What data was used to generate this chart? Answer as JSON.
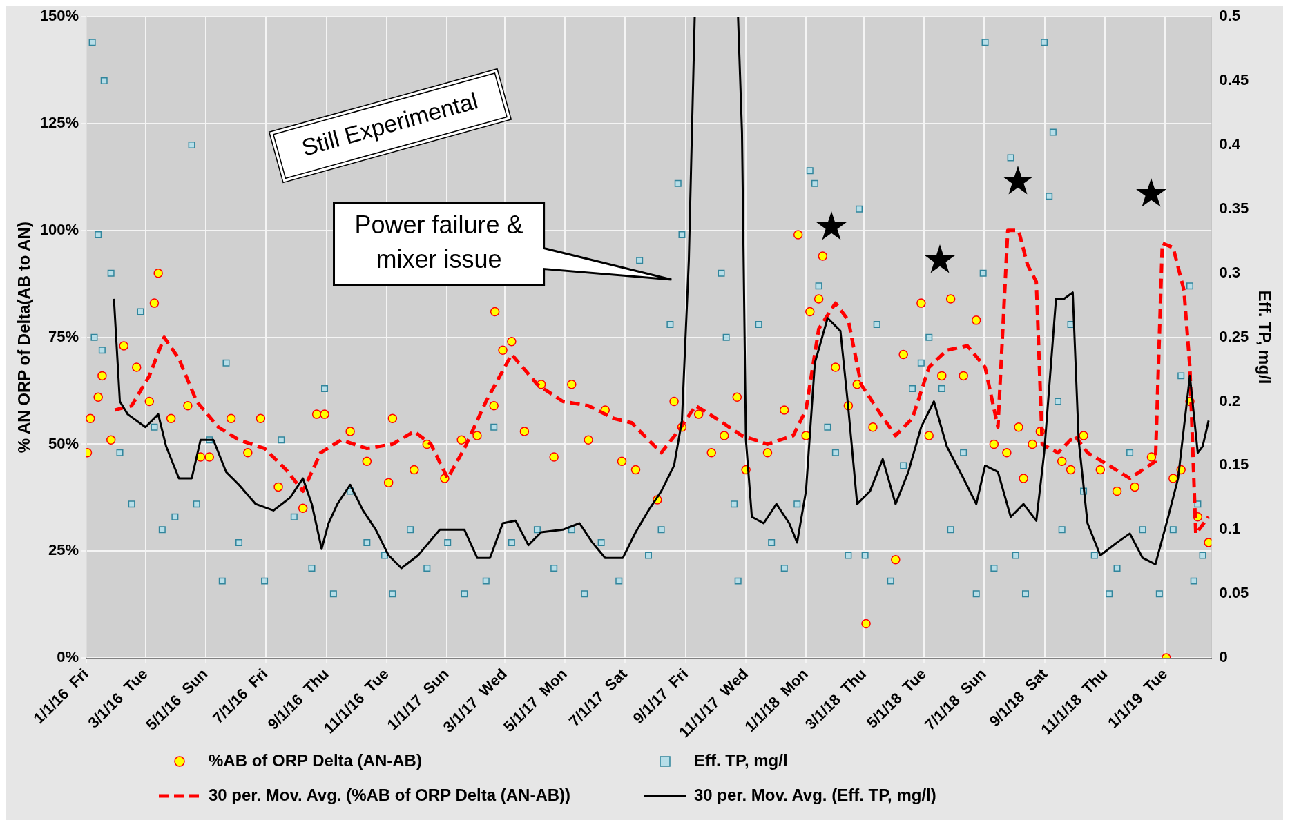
{
  "chart_data": {
    "type": "scatter",
    "ylabel": "% AN ORP of Delta(AB to AN)",
    "y2label": "Eff. TP, mg/l",
    "xlim": [
      "2016-01-01",
      "2019-02-17"
    ],
    "xticks": [
      {
        "value": "2016-01-01",
        "label": "1/1/16  Fri"
      },
      {
        "value": "2016-03-01",
        "label": "3/1/16  Tue"
      },
      {
        "value": "2016-05-01",
        "label": "5/1/16  Sun"
      },
      {
        "value": "2016-07-01",
        "label": "7/1/16  Fri"
      },
      {
        "value": "2016-09-01",
        "label": "9/1/16  Thu"
      },
      {
        "value": "2016-11-01",
        "label": "11/1/16  Tue"
      },
      {
        "value": "2017-01-01",
        "label": "1/1/17  Sun"
      },
      {
        "value": "2017-03-01",
        "label": "3/1/17  Wed"
      },
      {
        "value": "2017-05-01",
        "label": "5/1/17  Mon"
      },
      {
        "value": "2017-07-01",
        "label": "7/1/17  Sat"
      },
      {
        "value": "2017-09-01",
        "label": "9/1/17  Fri"
      },
      {
        "value": "2017-11-01",
        "label": "11/1/17  Wed"
      },
      {
        "value": "2018-01-01",
        "label": "1/1/18  Mon"
      },
      {
        "value": "2018-03-01",
        "label": "3/1/18  Thu"
      },
      {
        "value": "2018-05-01",
        "label": "5/1/18  Tue"
      },
      {
        "value": "2018-07-01",
        "label": "7/1/18  Sun"
      },
      {
        "value": "2018-09-01",
        "label": "9/1/18  Sat"
      },
      {
        "value": "2018-11-01",
        "label": "11/1/18  Thu"
      },
      {
        "value": "2019-01-01",
        "label": "1/1/19  Tue"
      }
    ],
    "ylim": [
      0,
      150
    ],
    "yticks": [
      {
        "value": 0,
        "label": "0%"
      },
      {
        "value": 25,
        "label": "25%"
      },
      {
        "value": 50,
        "label": "50%"
      },
      {
        "value": 75,
        "label": "75%"
      },
      {
        "value": 100,
        "label": "100%"
      },
      {
        "value": 125,
        "label": "125%"
      },
      {
        "value": 150,
        "label": "150%"
      }
    ],
    "y2lim": [
      0,
      0.5
    ],
    "y2ticks": [
      0,
      0.05,
      0.1,
      0.15,
      0.2,
      0.25,
      0.3,
      0.35,
      0.4,
      0.45,
      0.5
    ],
    "grid": true,
    "legend": "bottom",
    "annotations": [
      "Still Experimental",
      "Power failure & mixer issue"
    ],
    "series": [
      {
        "name": "%AB of ORP Delta (AN-AB)",
        "type": "scatter",
        "marker": "circle",
        "color": "#ffff00",
        "x": [
          "2016-01-02",
          "2016-01-05",
          "2016-01-13",
          "2016-01-17",
          "2016-01-26",
          "2016-02-08",
          "2016-02-21",
          "2016-03-05",
          "2016-03-14",
          "2016-03-10",
          "2016-03-27",
          "2016-04-13",
          "2016-04-26",
          "2016-05-05",
          "2016-05-27",
          "2016-06-13",
          "2016-06-26",
          "2016-07-14",
          "2016-08-08",
          "2016-08-22",
          "2016-08-30",
          "2016-09-25",
          "2016-10-12",
          "2016-11-03",
          "2016-11-07",
          "2016-11-29",
          "2016-12-12",
          "2016-12-30",
          "2017-01-16",
          "2017-02-01",
          "2017-02-18",
          "2017-02-27",
          "2017-02-19",
          "2017-03-08",
          "2017-03-21",
          "2017-04-07",
          "2017-04-20",
          "2017-05-08",
          "2017-05-25",
          "2017-06-11",
          "2017-06-28",
          "2017-07-12",
          "2017-08-03",
          "2017-08-20",
          "2017-08-28",
          "2017-09-14",
          "2017-09-27",
          "2017-10-10",
          "2017-10-23",
          "2017-11-01",
          "2017-11-23",
          "2017-12-10",
          "2017-12-24",
          "2018-01-01",
          "2018-01-05",
          "2018-01-14",
          "2018-01-18",
          "2018-01-31",
          "2018-02-13",
          "2018-02-22",
          "2018-03-03",
          "2018-03-10",
          "2018-04-02",
          "2018-04-10",
          "2018-04-28",
          "2018-05-06",
          "2018-05-19",
          "2018-05-28",
          "2018-06-10",
          "2018-06-23",
          "2018-07-11",
          "2018-07-24",
          "2018-08-05",
          "2018-08-10",
          "2018-08-19",
          "2018-08-27",
          "2018-09-18",
          "2018-09-27",
          "2018-10-10",
          "2018-10-27",
          "2018-11-13",
          "2018-12-01",
          "2018-12-18",
          "2019-01-02",
          "2019-01-09",
          "2019-01-17",
          "2019-01-26",
          "2019-02-03",
          "2019-02-14"
        ],
        "values": [
          48,
          56,
          61,
          66,
          51,
          73,
          68,
          60,
          90,
          83,
          56,
          59,
          47,
          47,
          56,
          48,
          56,
          40,
          35,
          57,
          57,
          53,
          46,
          41,
          56,
          44,
          50,
          42,
          51,
          52,
          59,
          72,
          81,
          74,
          53,
          64,
          47,
          64,
          51,
          58,
          46,
          44,
          37,
          60,
          54,
          57,
          48,
          52,
          61,
          44,
          48,
          58,
          99,
          52,
          81,
          84,
          94,
          68,
          59,
          64,
          8,
          54,
          23,
          71,
          83,
          52,
          66,
          84,
          66,
          79,
          50,
          48,
          54,
          42,
          50,
          53,
          46,
          44,
          52,
          44,
          39,
          40,
          47,
          0,
          42,
          44,
          60,
          33,
          27
        ]
      },
      {
        "name": "Eff. TP, mg/l",
        "type": "scatter",
        "marker": "square",
        "axis": "y2",
        "color": "#b7dee8",
        "x": [
          "2016-01-07",
          "2016-01-13",
          "2016-01-19",
          "2016-01-26",
          "2016-01-09",
          "2016-01-17",
          "2016-02-04",
          "2016-02-16",
          "2016-02-25",
          "2016-03-10",
          "2016-03-18",
          "2016-03-31",
          "2016-04-17",
          "2016-04-22",
          "2016-05-05",
          "2016-05-18",
          "2016-05-22",
          "2016-06-04",
          "2016-06-30",
          "2016-07-17",
          "2016-07-30",
          "2016-08-17",
          "2016-08-30",
          "2016-09-08",
          "2016-09-25",
          "2016-10-12",
          "2016-10-30",
          "2016-11-07",
          "2016-11-25",
          "2016-12-12",
          "2017-01-02",
          "2017-01-19",
          "2017-02-10",
          "2017-02-18",
          "2017-03-08",
          "2017-04-03",
          "2017-04-20",
          "2017-05-08",
          "2017-05-21",
          "2017-06-07",
          "2017-06-25",
          "2017-07-16",
          "2017-07-25",
          "2017-08-07",
          "2017-08-16",
          "2017-08-24",
          "2017-08-28",
          "2017-10-07",
          "2017-10-12",
          "2017-10-20",
          "2017-10-24",
          "2017-11-14",
          "2017-11-27",
          "2017-12-10",
          "2017-12-23",
          "2018-01-05",
          "2018-01-10",
          "2018-01-14",
          "2018-01-23",
          "2018-01-31",
          "2018-02-13",
          "2018-02-24",
          "2018-03-02",
          "2018-03-14",
          "2018-03-28",
          "2018-04-10",
          "2018-04-19",
          "2018-04-28",
          "2018-05-06",
          "2018-05-19",
          "2018-05-28",
          "2018-06-10",
          "2018-06-23",
          "2018-06-30",
          "2018-07-02",
          "2018-07-11",
          "2018-07-28",
          "2018-08-02",
          "2018-08-12",
          "2018-08-31",
          "2018-09-05",
          "2018-09-09",
          "2018-09-14",
          "2018-09-18",
          "2018-09-27",
          "2018-10-10",
          "2018-10-21",
          "2018-11-05",
          "2018-11-13",
          "2018-11-26",
          "2018-12-09",
          "2018-12-26",
          "2019-01-09",
          "2019-01-17",
          "2019-01-26",
          "2019-01-30",
          "2019-02-08",
          "2019-02-03"
        ],
        "values": [
          0.48,
          0.33,
          0.45,
          0.3,
          0.25,
          0.24,
          0.16,
          0.12,
          0.27,
          0.18,
          0.1,
          0.11,
          0.4,
          0.12,
          0.17,
          0.06,
          0.23,
          0.09,
          0.06,
          0.17,
          0.11,
          0.07,
          0.21,
          0.05,
          0.13,
          0.09,
          0.08,
          0.05,
          0.1,
          0.07,
          0.09,
          0.05,
          0.06,
          0.18,
          0.09,
          0.1,
          0.07,
          0.1,
          0.05,
          0.09,
          0.06,
          0.31,
          0.08,
          0.1,
          0.26,
          0.37,
          0.33,
          0.3,
          0.25,
          0.12,
          0.06,
          0.26,
          0.09,
          0.07,
          0.12,
          0.38,
          0.37,
          0.29,
          0.18,
          0.16,
          0.08,
          0.35,
          0.08,
          0.26,
          0.06,
          0.15,
          0.21,
          0.23,
          0.25,
          0.21,
          0.1,
          0.16,
          0.05,
          0.3,
          0.48,
          0.07,
          0.39,
          0.08,
          0.05,
          0.48,
          0.36,
          0.41,
          0.2,
          0.1,
          0.26,
          0.13,
          0.08,
          0.05,
          0.07,
          0.16,
          0.1,
          0.05,
          0.1,
          0.22,
          0.29,
          0.06,
          0.08,
          0.12
        ]
      },
      {
        "name": "30 per. Mov. Avg. (%AB of ORP Delta (AN-AB))",
        "type": "line",
        "line_style": "dashed",
        "marker": "none",
        "color": "#ff0000",
        "x": [
          "2016-01-30",
          "2016-02-16",
          "2016-03-05",
          "2016-03-20",
          "2016-04-04",
          "2016-04-22",
          "2016-05-14",
          "2016-06-04",
          "2016-06-30",
          "2016-07-22",
          "2016-08-08",
          "2016-08-26",
          "2016-09-16",
          "2016-10-12",
          "2016-11-07",
          "2016-11-29",
          "2016-12-16",
          "2017-01-02",
          "2017-01-19",
          "2017-02-10",
          "2017-03-08",
          "2017-04-03",
          "2017-04-29",
          "2017-05-25",
          "2017-06-20",
          "2017-07-08",
          "2017-07-25",
          "2017-08-07",
          "2017-08-24",
          "2017-09-11",
          "2017-10-02",
          "2017-10-28",
          "2017-11-23",
          "2017-12-19",
          "2018-01-01",
          "2018-01-14",
          "2018-01-31",
          "2018-02-13",
          "2018-02-26",
          "2018-03-15",
          "2018-04-02",
          "2018-04-19",
          "2018-05-06",
          "2018-05-24",
          "2018-06-14",
          "2018-07-02",
          "2018-07-15",
          "2018-07-25",
          "2018-08-05",
          "2018-08-14",
          "2018-08-23",
          "2018-08-29",
          "2018-09-14",
          "2018-10-01",
          "2018-10-14",
          "2018-11-05",
          "2018-11-26",
          "2018-12-22",
          "2018-12-29",
          "2019-01-09",
          "2019-01-20",
          "2019-01-26",
          "2019-02-01",
          "2019-02-14"
        ],
        "values": [
          58,
          59,
          66,
          75,
          70,
          60,
          54,
          51,
          49,
          44,
          39,
          48,
          51,
          49,
          50,
          53,
          50,
          42,
          49,
          60,
          71,
          64,
          60,
          59,
          56,
          55,
          51,
          48,
          53,
          59,
          56,
          52,
          50,
          52,
          58,
          77,
          83,
          79,
          64,
          58,
          52,
          56,
          68,
          72,
          73,
          68,
          54,
          100,
          100,
          92,
          88,
          50,
          48,
          52,
          48,
          45,
          42,
          46,
          97,
          96,
          86,
          68,
          29,
          33
        ]
      },
      {
        "name": "30 per. Mov. Avg. (Eff. TP, mg/l)",
        "type": "line",
        "line_style": "solid",
        "marker": "none",
        "axis": "y2",
        "color": "#000000",
        "x": [
          "2016-01-29",
          "2016-02-04",
          "2016-02-12",
          "2016-03-01",
          "2016-03-14",
          "2016-03-22",
          "2016-04-04",
          "2016-04-17",
          "2016-04-26",
          "2016-05-09",
          "2016-05-22",
          "2016-06-04",
          "2016-06-21",
          "2016-07-09",
          "2016-07-26",
          "2016-08-08",
          "2016-08-17",
          "2016-08-27",
          "2016-09-03",
          "2016-09-12",
          "2016-09-25",
          "2016-10-08",
          "2016-10-21",
          "2016-11-03",
          "2016-11-16",
          "2016-12-03",
          "2016-12-25",
          "2017-01-19",
          "2017-02-01",
          "2017-02-14",
          "2017-02-27",
          "2017-03-12",
          "2017-03-25",
          "2017-04-07",
          "2017-04-29",
          "2017-05-16",
          "2017-05-29",
          "2017-06-11",
          "2017-06-29",
          "2017-07-12",
          "2017-07-25",
          "2017-08-07",
          "2017-08-20",
          "2017-08-28",
          "2017-09-04",
          "2017-09-10",
          "2017-09-30",
          "2017-10-24",
          "2017-10-28",
          "2017-11-01",
          "2017-11-07",
          "2017-11-19",
          "2017-12-02",
          "2017-12-15",
          "2017-12-23",
          "2018-01-01",
          "2018-01-10",
          "2018-01-23",
          "2018-02-05",
          "2018-02-13",
          "2018-02-22",
          "2018-03-07",
          "2018-03-20",
          "2018-04-02",
          "2018-04-15",
          "2018-04-28",
          "2018-05-11",
          "2018-05-24",
          "2018-06-10",
          "2018-06-23",
          "2018-07-02",
          "2018-07-15",
          "2018-07-28",
          "2018-08-10",
          "2018-08-23",
          "2018-08-31",
          "2018-09-12",
          "2018-09-20",
          "2018-09-29",
          "2018-10-05",
          "2018-10-14",
          "2018-10-27",
          "2018-11-13",
          "2018-11-26",
          "2018-12-09",
          "2018-12-22",
          "2019-01-04",
          "2019-01-14",
          "2019-01-20",
          "2019-01-26",
          "2019-02-03",
          "2019-02-08",
          "2019-02-14"
        ],
        "values": [
          0.28,
          0.2,
          0.19,
          0.18,
          0.19,
          0.165,
          0.14,
          0.14,
          0.17,
          0.17,
          0.145,
          0.135,
          0.12,
          0.115,
          0.125,
          0.14,
          0.12,
          0.085,
          0.105,
          0.12,
          0.135,
          0.115,
          0.1,
          0.08,
          0.07,
          0.08,
          0.1,
          0.1,
          0.078,
          0.078,
          0.105,
          0.107,
          0.088,
          0.098,
          0.1,
          0.105,
          0.09,
          0.078,
          0.078,
          0.098,
          0.115,
          0.13,
          0.15,
          0.185,
          0.31,
          0.5,
          null,
          0.5,
          0.41,
          0.17,
          0.11,
          0.105,
          0.12,
          0.105,
          0.09,
          0.13,
          0.23,
          0.265,
          0.255,
          0.195,
          0.12,
          0.13,
          0.155,
          0.12,
          0.145,
          0.18,
          0.2,
          0.165,
          0.14,
          0.12,
          0.15,
          0.145,
          0.11,
          0.12,
          0.107,
          0.16,
          0.28,
          0.28,
          0.285,
          0.17,
          0.105,
          0.08,
          0.09,
          0.097,
          0.078,
          0.073,
          0.11,
          0.14,
          0.18,
          0.22,
          0.16,
          0.165,
          0.185
        ]
      }
    ]
  }
}
